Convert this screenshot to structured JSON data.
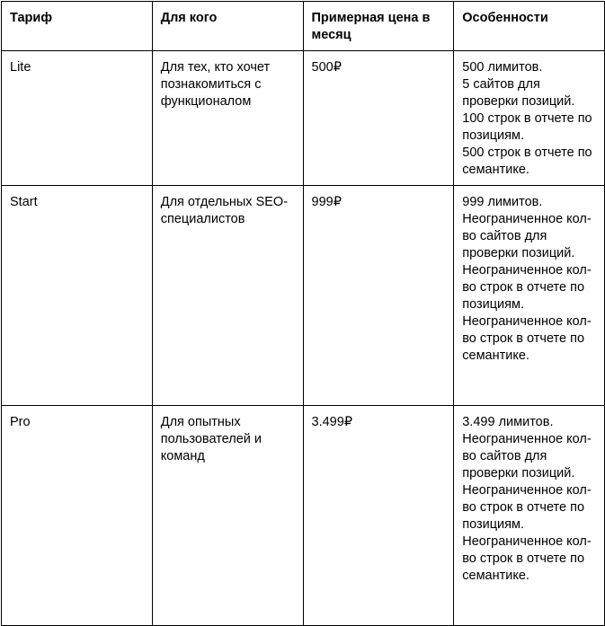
{
  "headers": [
    "Тариф",
    "Для кого",
    "Примерная цена в месяц",
    "Особенности"
  ],
  "rows": [
    {
      "plan": "Lite",
      "audience": "Для тех, кто хочет познакомиться с функционалом",
      "price": "500₽",
      "features": [
        "500 лимитов.",
        "5 сайтов для проверки позиций.",
        "100 строк в отчете по позициям.",
        "500 строк в отчете по семантике."
      ]
    },
    {
      "plan": "Start",
      "audience": "Для отдельных SEO-специалистов",
      "price": "999₽",
      "features": [
        "999 лимитов.",
        "Неограниченное кол-во сайтов для проверки позиций.",
        "Неограниченное кол-во строк в отчете по позициям.",
        "Неограниченное кол-во строк в отчете по семантике."
      ]
    },
    {
      "plan": "Pro",
      "audience": "Для опытных пользователей и команд",
      "price": "3.499₽",
      "features": [
        "3.499 лимитов.",
        "Неограниченное кол-во сайтов для проверки позиций.",
        "Неограниченное кол-во строк в отчете по позициям.",
        "Неограниченное кол-во строк в отчете по семантике."
      ]
    }
  ]
}
